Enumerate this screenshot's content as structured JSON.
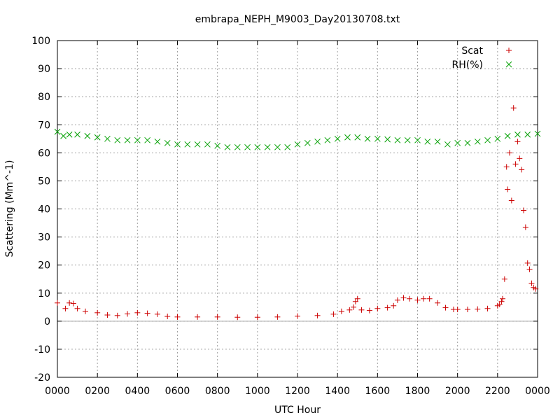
{
  "chart_data": {
    "type": "scatter",
    "title": "embrapa_NEPH_M9003_Day20130708.txt",
    "xlabel": "UTC Hour",
    "ylabel": "Scattering (Mm^-1)",
    "xlim": [
      0,
      24
    ],
    "ylim": [
      -20,
      100
    ],
    "x_ticks": [
      {
        "value": 0,
        "label": "0000"
      },
      {
        "value": 2,
        "label": "0200"
      },
      {
        "value": 4,
        "label": "0400"
      },
      {
        "value": 6,
        "label": "0600"
      },
      {
        "value": 8,
        "label": "0800"
      },
      {
        "value": 10,
        "label": "1000"
      },
      {
        "value": 12,
        "label": "1200"
      },
      {
        "value": 14,
        "label": "1400"
      },
      {
        "value": 16,
        "label": "1600"
      },
      {
        "value": 18,
        "label": "1800"
      },
      {
        "value": 20,
        "label": "2000"
      },
      {
        "value": 22,
        "label": "2200"
      },
      {
        "value": 24,
        "label": "0000"
      }
    ],
    "y_ticks": [
      {
        "value": -20,
        "label": "-20"
      },
      {
        "value": -10,
        "label": "-10"
      },
      {
        "value": 0,
        "label": "0"
      },
      {
        "value": 10,
        "label": "10"
      },
      {
        "value": 20,
        "label": "20"
      },
      {
        "value": 30,
        "label": "30"
      },
      {
        "value": 40,
        "label": "40"
      },
      {
        "value": 50,
        "label": "50"
      },
      {
        "value": 60,
        "label": "60"
      },
      {
        "value": 70,
        "label": "70"
      },
      {
        "value": 80,
        "label": "80"
      },
      {
        "value": 90,
        "label": "90"
      },
      {
        "value": 100,
        "label": "100"
      }
    ],
    "grid": true,
    "zero_line": true,
    "legend_position": "top-right",
    "series": [
      {
        "name": "Scat",
        "marker": "plus",
        "color": "#cc0000",
        "x": [
          0.0,
          0.4,
          0.6,
          0.8,
          1.0,
          1.4,
          2.0,
          2.5,
          3.0,
          3.5,
          4.0,
          4.5,
          5.0,
          5.5,
          6.0,
          7.0,
          8.0,
          9.0,
          10.0,
          11.0,
          12.0,
          13.0,
          13.8,
          14.2,
          14.6,
          14.8,
          14.9,
          15.0,
          15.2,
          15.6,
          16.0,
          16.5,
          16.8,
          17.0,
          17.3,
          17.6,
          18.0,
          18.3,
          18.6,
          19.0,
          19.4,
          19.8,
          20.0,
          20.5,
          21.0,
          21.5,
          22.0,
          22.1,
          22.2,
          22.25,
          22.35,
          22.45,
          22.5,
          22.6,
          22.7,
          22.8,
          22.9,
          23.0,
          23.1,
          23.2,
          23.3,
          23.4,
          23.5,
          23.6,
          23.7,
          23.8,
          23.9
        ],
        "y": [
          6.5,
          4.5,
          6.5,
          6.3,
          4.5,
          3.5,
          3.0,
          2.2,
          2.0,
          2.6,
          3.0,
          2.8,
          2.5,
          1.7,
          1.5,
          1.5,
          1.5,
          1.4,
          1.4,
          1.5,
          1.8,
          2.0,
          2.5,
          3.5,
          4.0,
          5.0,
          7.0,
          8.0,
          4.0,
          3.8,
          4.5,
          4.8,
          5.5,
          7.5,
          8.3,
          8.0,
          7.5,
          8.0,
          8.0,
          6.5,
          4.8,
          4.2,
          4.2,
          4.2,
          4.3,
          4.5,
          5.5,
          6.0,
          7.0,
          8.0,
          15.0,
          55.0,
          47.0,
          60.0,
          43.0,
          76.0,
          56.0,
          64.0,
          58.0,
          54.0,
          39.5,
          33.5,
          20.7,
          18.5,
          13.5,
          12.0,
          11.5
        ]
      },
      {
        "name": "RH(%)",
        "marker": "cross",
        "color": "#00a000",
        "x": [
          0.0,
          0.3,
          0.6,
          1.0,
          1.5,
          2.0,
          2.5,
          3.0,
          3.5,
          4.0,
          4.5,
          5.0,
          5.5,
          6.0,
          6.5,
          7.0,
          7.5,
          8.0,
          8.5,
          9.0,
          9.5,
          10.0,
          10.5,
          11.0,
          11.5,
          12.0,
          12.5,
          13.0,
          13.5,
          14.0,
          14.5,
          15.0,
          15.5,
          16.0,
          16.5,
          17.0,
          17.5,
          18.0,
          18.5,
          19.0,
          19.5,
          20.0,
          20.5,
          21.0,
          21.5,
          22.0,
          22.5,
          23.0,
          23.5,
          24.0
        ],
        "y": [
          67.5,
          66.0,
          66.5,
          66.5,
          66.0,
          65.5,
          65.0,
          64.5,
          64.5,
          64.5,
          64.5,
          64.0,
          63.5,
          63.0,
          63.0,
          63.0,
          63.0,
          62.5,
          62.0,
          62.0,
          62.0,
          62.0,
          62.0,
          62.0,
          62.0,
          63.0,
          63.5,
          64.0,
          64.5,
          65.0,
          65.5,
          65.5,
          65.0,
          65.0,
          64.8,
          64.5,
          64.5,
          64.5,
          64.0,
          64.0,
          63.0,
          63.5,
          63.5,
          64.0,
          64.5,
          65.0,
          66.0,
          66.5,
          66.5,
          66.8
        ]
      }
    ]
  }
}
